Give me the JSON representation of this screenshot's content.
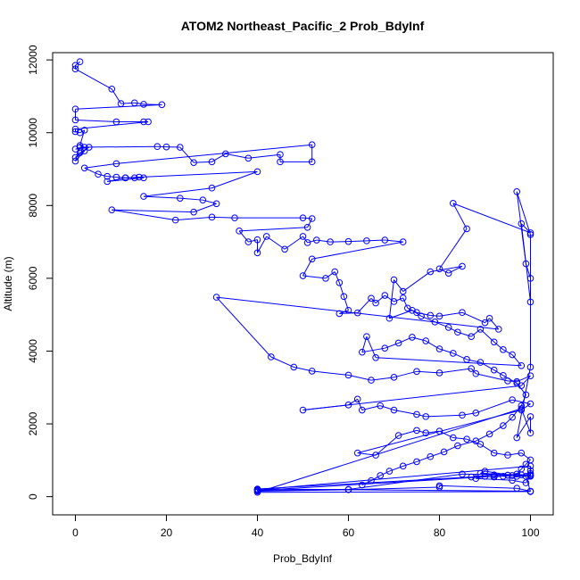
{
  "chart_data": {
    "type": "line",
    "title": "ATOM2 Northeast_Pacific_2 Prob_BdyInf",
    "xlabel": "Prob_BdyInf",
    "ylabel": "Altitude (m)",
    "xlim": [
      -5,
      105
    ],
    "ylim": [
      -500,
      12200
    ],
    "x_ticks": [
      0,
      20,
      40,
      60,
      80,
      100
    ],
    "y_ticks": [
      0,
      2000,
      4000,
      6000,
      8000,
      10000,
      12000
    ],
    "grid": false,
    "color": "#0000FF",
    "series": [
      {
        "points": [
          [
            1,
            11950
          ],
          [
            0,
            11850
          ],
          [
            0,
            11750
          ],
          [
            8,
            11200
          ],
          [
            10,
            10800
          ],
          [
            13,
            10820
          ],
          [
            15,
            10780
          ],
          [
            19,
            10770
          ],
          [
            0,
            10650
          ],
          [
            0,
            10350
          ],
          [
            9,
            10300
          ],
          [
            15,
            10300
          ],
          [
            16,
            10300
          ],
          [
            0,
            10100
          ],
          [
            0,
            10030
          ],
          [
            1,
            10000
          ],
          [
            2,
            10070
          ],
          [
            1,
            9650
          ],
          [
            2,
            9600
          ],
          [
            0,
            9550
          ],
          [
            3,
            9600
          ],
          [
            1,
            9450
          ],
          [
            0,
            9320
          ],
          [
            2,
            9500
          ],
          [
            0,
            9220
          ],
          [
            1,
            9600
          ],
          [
            18,
            9620
          ],
          [
            20,
            9610
          ],
          [
            23,
            9600
          ],
          [
            26,
            9180
          ],
          [
            30,
            9200
          ],
          [
            33,
            9420
          ],
          [
            38,
            9300
          ],
          [
            45,
            9400
          ],
          [
            45,
            9200
          ],
          [
            52,
            9200
          ],
          [
            52,
            9670
          ],
          [
            9,
            9150
          ],
          [
            2,
            9030
          ],
          [
            5,
            8860
          ],
          [
            7,
            8800
          ],
          [
            9,
            8780
          ],
          [
            11,
            8760
          ],
          [
            13,
            8760
          ],
          [
            14,
            8780
          ],
          [
            15,
            8760
          ],
          [
            7,
            8660
          ],
          [
            11,
            8760
          ],
          [
            40,
            8930
          ],
          [
            30,
            8480
          ],
          [
            15,
            8250
          ],
          [
            23,
            8200
          ],
          [
            28,
            8150
          ],
          [
            31,
            8050
          ],
          [
            26,
            7820
          ],
          [
            8,
            7880
          ],
          [
            22,
            7600
          ],
          [
            30,
            7680
          ],
          [
            35,
            7660
          ],
          [
            50,
            7660
          ],
          [
            52,
            7640
          ],
          [
            51,
            7400
          ],
          [
            36,
            7300
          ],
          [
            38,
            7000
          ],
          [
            40,
            7060
          ],
          [
            40,
            6700
          ],
          [
            42,
            7150
          ],
          [
            46,
            6800
          ],
          [
            50,
            7150
          ],
          [
            51,
            6980
          ],
          [
            53,
            7050
          ],
          [
            56,
            7000
          ],
          [
            60,
            7010
          ],
          [
            64,
            7030
          ],
          [
            68,
            7050
          ],
          [
            72,
            7000
          ],
          [
            52,
            6530
          ],
          [
            50,
            6070
          ],
          [
            55,
            6000
          ],
          [
            57,
            6180
          ],
          [
            58,
            5880
          ],
          [
            59,
            5500
          ],
          [
            60,
            5120
          ],
          [
            58,
            5030
          ],
          [
            62,
            5050
          ],
          [
            65,
            5450
          ],
          [
            66,
            5320
          ],
          [
            68,
            5530
          ],
          [
            70,
            5360
          ],
          [
            72,
            5460
          ],
          [
            73,
            5180
          ],
          [
            75,
            5060
          ],
          [
            78,
            4980
          ],
          [
            80,
            4960
          ],
          [
            85,
            5060
          ],
          [
            90,
            4780
          ],
          [
            91,
            4900
          ],
          [
            93,
            4600
          ],
          [
            31,
            5480
          ],
          [
            43,
            3840
          ],
          [
            48,
            3560
          ],
          [
            52,
            3450
          ],
          [
            60,
            3340
          ],
          [
            65,
            3200
          ],
          [
            70,
            3280
          ],
          [
            75,
            3440
          ],
          [
            80,
            3400
          ],
          [
            87,
            3520
          ],
          [
            88,
            3380
          ],
          [
            95,
            3180
          ],
          [
            97,
            3160
          ],
          [
            100,
            3320
          ],
          [
            98,
            3050
          ],
          [
            50,
            2380
          ],
          [
            60,
            2520
          ],
          [
            62,
            2680
          ],
          [
            63,
            2380
          ],
          [
            67,
            2500
          ],
          [
            70,
            2380
          ],
          [
            75,
            2260
          ],
          [
            77,
            2200
          ],
          [
            85,
            2240
          ],
          [
            88,
            2300
          ],
          [
            96,
            2660
          ],
          [
            100,
            2550
          ],
          [
            98,
            2380
          ],
          [
            62,
            1200
          ],
          [
            66,
            1140
          ],
          [
            71,
            1680
          ],
          [
            75,
            1820
          ],
          [
            77,
            1750
          ],
          [
            80,
            1800
          ],
          [
            83,
            1620
          ],
          [
            86,
            1580
          ],
          [
            89,
            1440
          ],
          [
            92,
            1200
          ],
          [
            95,
            1140
          ],
          [
            98,
            1200
          ],
          [
            100,
            1010
          ],
          [
            99,
            890
          ],
          [
            98,
            760
          ],
          [
            97,
            620
          ],
          [
            95,
            590
          ],
          [
            92,
            540
          ],
          [
            90,
            560
          ],
          [
            88,
            500
          ],
          [
            96,
            450
          ],
          [
            99,
            380
          ],
          [
            100,
            560
          ],
          [
            100,
            640
          ],
          [
            100,
            720
          ],
          [
            100,
            840
          ],
          [
            40,
            190
          ],
          [
            40,
            150
          ],
          [
            60,
            190
          ],
          [
            80,
            260
          ],
          [
            80,
            300
          ],
          [
            97,
            230
          ],
          [
            100,
            150
          ],
          [
            40,
            210
          ],
          [
            87,
            540
          ],
          [
            92,
            600
          ],
          [
            94,
            560
          ],
          [
            96,
            580
          ],
          [
            98,
            600
          ],
          [
            100,
            600
          ],
          [
            85,
            620
          ],
          [
            60,
            200
          ],
          [
            40,
            170
          ],
          [
            92,
            560
          ],
          [
            95,
            590
          ],
          [
            100,
            580
          ],
          [
            89,
            640
          ],
          [
            90,
            700
          ],
          [
            97,
            560
          ],
          [
            99,
            560
          ],
          [
            100,
            140
          ],
          [
            40,
            120
          ],
          [
            98,
            2420
          ],
          [
            100,
            1750
          ],
          [
            100,
            2200
          ],
          [
            97,
            1620
          ],
          [
            100,
            3560
          ],
          [
            100,
            6000
          ],
          [
            99,
            6400
          ],
          [
            97,
            8380
          ],
          [
            100,
            7200
          ],
          [
            100,
            5350
          ],
          [
            98,
            7500
          ],
          [
            100,
            7250
          ],
          [
            83,
            8060
          ],
          [
            86,
            7360
          ],
          [
            80,
            6260
          ],
          [
            82,
            6140
          ],
          [
            85,
            6330
          ],
          [
            78,
            6180
          ],
          [
            72,
            5640
          ],
          [
            70,
            5960
          ],
          [
            69,
            4900
          ],
          [
            74,
            5120
          ],
          [
            76,
            4960
          ],
          [
            79,
            4800
          ],
          [
            82,
            4650
          ],
          [
            84,
            4520
          ],
          [
            87,
            4400
          ],
          [
            89,
            4600
          ],
          [
            92,
            4250
          ],
          [
            94,
            4040
          ],
          [
            96,
            3900
          ],
          [
            98,
            3600
          ],
          [
            66,
            3820
          ],
          [
            64,
            4400
          ],
          [
            63,
            3970
          ],
          [
            68,
            4080
          ],
          [
            71,
            4220
          ],
          [
            74,
            4380
          ],
          [
            77,
            4280
          ],
          [
            80,
            4060
          ],
          [
            83,
            3940
          ],
          [
            86,
            3770
          ],
          [
            89,
            3690
          ],
          [
            92,
            3480
          ],
          [
            94,
            3330
          ],
          [
            97,
            3120
          ],
          [
            99,
            2800
          ],
          [
            98,
            2500
          ],
          [
            96,
            2180
          ],
          [
            94,
            1950
          ],
          [
            91,
            1720
          ],
          [
            88,
            1530
          ],
          [
            84,
            1400
          ],
          [
            81,
            1230
          ],
          [
            78,
            1100
          ],
          [
            75,
            960
          ],
          [
            72,
            840
          ],
          [
            69,
            700
          ],
          [
            67,
            580
          ],
          [
            65,
            440
          ],
          [
            63,
            320
          ]
        ]
      }
    ]
  }
}
